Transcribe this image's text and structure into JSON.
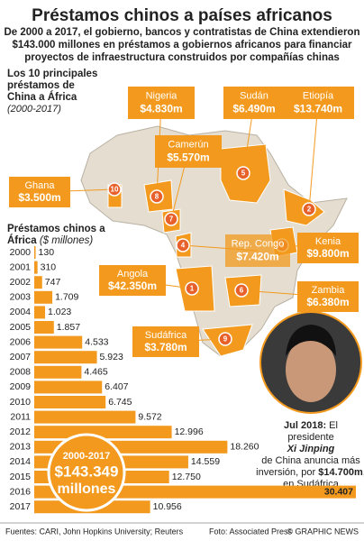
{
  "header": {
    "title": "Préstamos chinos a países africanos",
    "subtitle": [
      "De 2000 a 2017, el gobierno, bancos y contratistas de China extendieron",
      "$143.000 millones en préstamos a gobiernos africanos para financiar",
      "proyectos de infraestructura construidos por compañías chinas"
    ]
  },
  "map": {
    "title": [
      "Los 10 principales",
      "préstamos de",
      "China a África"
    ],
    "period": "(2000-2017)",
    "countries": [
      {
        "rank": "1",
        "name": "Angola",
        "value_label": "$42.350m"
      },
      {
        "rank": "2",
        "name": "Etiopía",
        "value_label": "$13.740m"
      },
      {
        "rank": "3",
        "name": "Kenia",
        "value_label": "$9.800m"
      },
      {
        "rank": "4",
        "name": "Rep. Congo",
        "value_label": "$7.420m"
      },
      {
        "rank": "5",
        "name": "Sudán",
        "value_label": "$6.490m"
      },
      {
        "rank": "6",
        "name": "Zambia",
        "value_label": "$6.380m"
      },
      {
        "rank": "7",
        "name": "Camerún",
        "value_label": "$5.570m"
      },
      {
        "rank": "8",
        "name": "Nigeria",
        "value_label": "$4.830m"
      },
      {
        "rank": "9",
        "name": "Sudáfrica",
        "value_label": "$3.780m"
      },
      {
        "rank": "10",
        "name": "Ghana",
        "value_label": "$3.500m"
      }
    ]
  },
  "chart_data": {
    "type": "bar",
    "orientation": "horizontal",
    "title": [
      "Préstamos chinos a",
      "África"
    ],
    "unit": "($ millones)",
    "categories": [
      "2000",
      "2001",
      "2002",
      "2003",
      "2004",
      "2005",
      "2006",
      "2007",
      "2008",
      "2009",
      "2010",
      "2011",
      "2012",
      "2013",
      "2014",
      "2015",
      "2016",
      "2017"
    ],
    "values": [
      130,
      310,
      747,
      1709,
      1023,
      1857,
      4533,
      5923,
      4465,
      6407,
      6745,
      9572,
      12996,
      18260,
      14559,
      12750,
      30407,
      10956
    ],
    "value_labels": [
      "130",
      "310",
      "747",
      "1.709",
      "1.023",
      "1.857",
      "4.533",
      "5.923",
      "4.465",
      "6.407",
      "6.745",
      "9.572",
      "12.996",
      "18.260",
      "14.559",
      "12.750",
      "30.407",
      "10.956"
    ],
    "color": "#f39a1e"
  },
  "total": {
    "period": "2000-2017",
    "amount": "$143.349",
    "unit": "millones"
  },
  "photo_caption": [
    "Jul 2018:",
    " El",
    "presidente",
    "Xi Jinping",
    "de China anuncia más",
    "inversión, por ",
    "$14.700m",
    ",",
    "en Sudáfrica"
  ],
  "footer": {
    "sources": "Fuentes: CARI, John Hopkins University; Reuters",
    "photo": "Foto: Associated Press",
    "credit": "© GRAPHIC NEWS"
  }
}
